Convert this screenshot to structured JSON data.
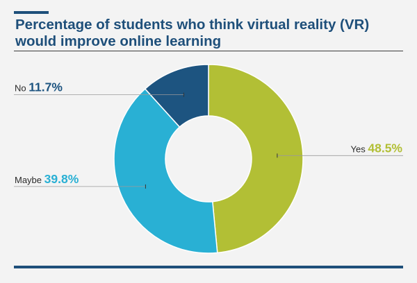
{
  "title": "Percentage of students who think virtual reality (VR) would improve online learning",
  "colors": {
    "accent": "#1e4f7a",
    "yes": "#b2bf35",
    "maybe": "#29b0d4",
    "no": "#1d5480"
  },
  "chart_data": {
    "type": "pie",
    "donut": true,
    "title": "Percentage of students who think virtual reality (VR) would improve online learning",
    "legend": "inline-labels",
    "slices": [
      {
        "label": "Yes",
        "value": 48.5,
        "display": "48.5%",
        "color": "#b2bf35"
      },
      {
        "label": "Maybe",
        "value": 39.8,
        "display": "39.8%",
        "color": "#29b0d4"
      },
      {
        "label": "No",
        "value": 11.7,
        "display": "11.7%",
        "color": "#1d5480"
      }
    ]
  }
}
